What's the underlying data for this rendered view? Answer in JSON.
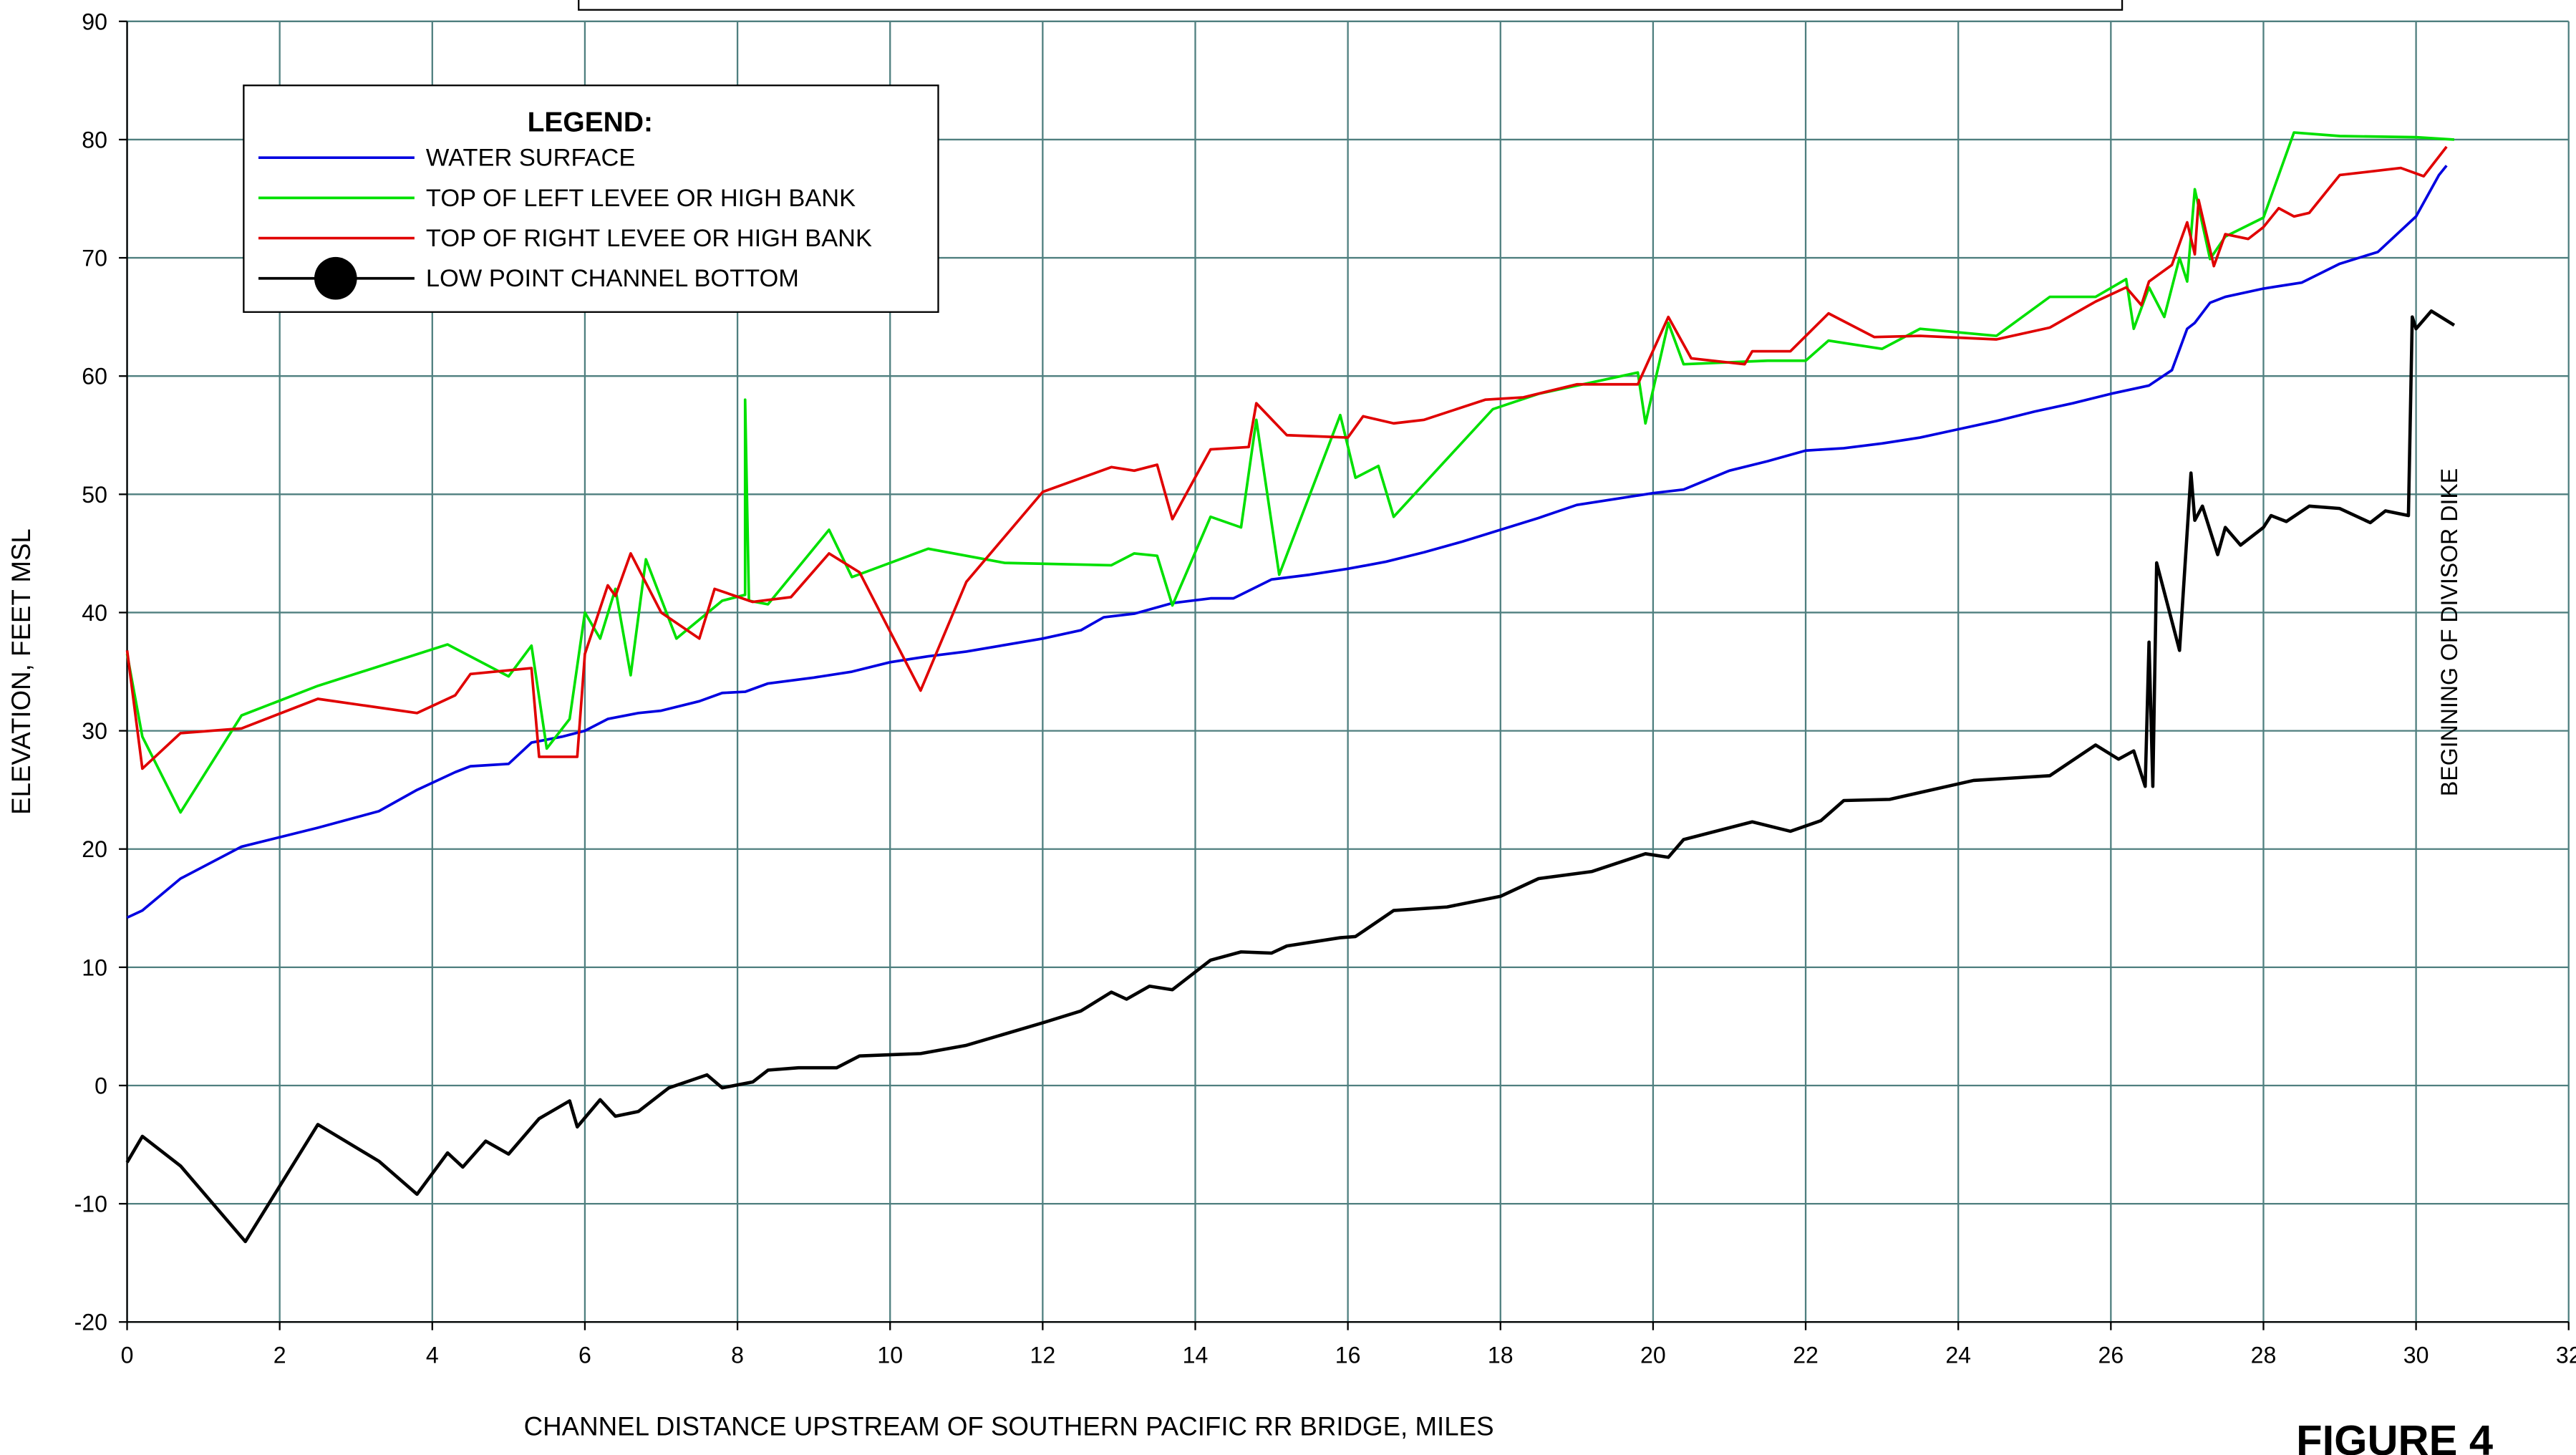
{
  "chart_data": {
    "type": "line",
    "x_label": "CHANNEL DISTANCE UPSTREAM OF SOUTHERN PACIFIC RR BRIDGE, MILES",
    "y_label": "ELEVATION, FEET MSL",
    "legend_title": "LEGEND:",
    "annotation": "BEGINNING OF DIVISOR DIKE",
    "figure_label": "FIGURE 4",
    "xlim": [
      0,
      32
    ],
    "xticks": [
      0,
      2,
      4,
      6,
      8,
      10,
      12,
      14,
      16,
      18,
      20,
      22,
      24,
      26,
      28,
      30,
      32
    ],
    "ylim": [
      -20,
      90
    ],
    "yticks": [
      -20,
      -10,
      0,
      10,
      20,
      30,
      40,
      50,
      60,
      70,
      80,
      90
    ],
    "grid": true,
    "legend": "upper left",
    "series": [
      {
        "name": "WATER SURFACE",
        "color": "#0000e0",
        "x": [
          0,
          0.2,
          0.7,
          1.5,
          2.5,
          3.3,
          3.8,
          4.3,
          4.5,
          5,
          5.3,
          5.7,
          6,
          6.3,
          6.7,
          7,
          7.5,
          7.8,
          8.1,
          8.4,
          9,
          9.5,
          10,
          10.5,
          11,
          12,
          12.5,
          12.8,
          13.2,
          13.7,
          14.2,
          14.5,
          15,
          15.5,
          16,
          16.5,
          17,
          17.5,
          18,
          18.5,
          19,
          19.5,
          20,
          20.4,
          21,
          21.5,
          22,
          22.5,
          23,
          23.5,
          24,
          24.5,
          25,
          25.5,
          26,
          26.5,
          26.8,
          27,
          27.1,
          27.3,
          27.5,
          28,
          28.5,
          29,
          29.5,
          30,
          30.3,
          30.4
        ],
        "values": [
          14.2,
          14.8,
          17.5,
          20.2,
          21.8,
          23.2,
          25,
          26.5,
          27,
          27.2,
          29,
          29.5,
          30,
          31,
          31.5,
          31.7,
          32.5,
          33.2,
          33.3,
          34,
          34.5,
          35,
          35.8,
          36.3,
          36.7,
          37.8,
          38.5,
          39.6,
          39.9,
          40.8,
          41.2,
          41.2,
          42.8,
          43.2,
          43.7,
          44.3,
          45.1,
          46,
          47,
          48,
          49.1,
          49.6,
          50.1,
          50.4,
          52,
          52.8,
          53.7,
          53.9,
          54.3,
          54.8,
          55.5,
          56.2,
          57,
          57.7,
          58.5,
          59.2,
          60.5,
          64,
          64.5,
          66.2,
          66.7,
          67.4,
          67.9,
          69.5,
          70.5,
          73.5,
          77,
          77.8
        ]
      },
      {
        "name": "TOP OF LEFT LEVEE OR HIGH BANK",
        "color": "#00e000",
        "x": [
          0,
          0.2,
          0.7,
          1.5,
          2.5,
          4.2,
          5,
          5.3,
          5.5,
          5.8,
          6,
          6.2,
          6.4,
          6.6,
          6.8,
          7.2,
          7.8,
          8.1,
          8.1,
          8.15,
          8.4,
          9.2,
          9.5,
          10.5,
          11.5,
          12.9,
          13.2,
          13.5,
          13.7,
          14.2,
          14.6,
          14.8,
          15.1,
          15.9,
          16.1,
          16.4,
          16.6,
          17.9,
          18.5,
          19.8,
          19.9,
          20.2,
          20.4,
          21.5,
          22,
          22.3,
          23,
          23.5,
          24.5,
          25.2,
          25.8,
          26.2,
          26.3,
          26.5,
          26.7,
          26.9,
          27,
          27.1,
          27.3,
          27.5,
          28,
          28.4,
          29,
          30,
          30.5
        ],
        "values": [
          36.5,
          29.5,
          23.1,
          31.3,
          33.8,
          37.3,
          34.6,
          37.2,
          28.5,
          31,
          40,
          37.8,
          42,
          34.7,
          44.5,
          37.8,
          41,
          41.5,
          58,
          41,
          40.7,
          47,
          43,
          45.4,
          44.2,
          44,
          45,
          44.8,
          40.6,
          48.1,
          47.2,
          56.3,
          43.2,
          56.7,
          51.4,
          52.4,
          48.1,
          57.2,
          58.5,
          60.3,
          56,
          64.5,
          61,
          61.3,
          61.3,
          63,
          62.3,
          64,
          63.4,
          66.7,
          66.7,
          68.2,
          64,
          67.5,
          65,
          70,
          68,
          75.8,
          69.9,
          71.8,
          73.4,
          80.6,
          80.3,
          80.2,
          80
        ]
      },
      {
        "name": "TOP OF RIGHT LEVEE OR HIGH BANK",
        "color": "#e00000",
        "x": [
          0,
          0.2,
          0.7,
          1.5,
          2.5,
          3.8,
          4.3,
          4.5,
          5.3,
          5.4,
          5.9,
          6,
          6.3,
          6.4,
          6.6,
          7,
          7.5,
          7.7,
          8.2,
          8.7,
          9.2,
          9.6,
          10.4,
          11,
          12,
          12.9,
          13.2,
          13.5,
          13.7,
          14.2,
          14.7,
          14.8,
          15.2,
          16,
          16.2,
          16.6,
          17,
          17.8,
          18.3,
          19,
          19.8,
          20.2,
          20.5,
          21.2,
          21.3,
          21.8,
          22.3,
          22.9,
          23.5,
          24.5,
          25.2,
          25.8,
          26.2,
          26.4,
          26.5,
          26.8,
          27,
          27.1,
          27.15,
          27.35,
          27.5,
          27.8,
          28,
          28.2,
          28.4,
          28.6,
          29,
          29.8,
          30.1,
          30.4
        ],
        "values": [
          36.8,
          26.8,
          29.8,
          30.2,
          32.7,
          31.5,
          33,
          34.8,
          35.3,
          27.8,
          27.8,
          36.5,
          42.3,
          41.4,
          45,
          40,
          37.8,
          42,
          40.9,
          41.3,
          45,
          43.4,
          33.4,
          42.6,
          50.2,
          52.3,
          52,
          52.5,
          47.9,
          53.8,
          54,
          57.7,
          55,
          54.8,
          56.6,
          56,
          56.3,
          58,
          58.2,
          59.3,
          59.3,
          65,
          61.5,
          61,
          62.1,
          62.1,
          65.3,
          63.3,
          63.4,
          63.1,
          64.1,
          66.3,
          67.5,
          66,
          68,
          69.4,
          73,
          70.3,
          74.9,
          69.3,
          72,
          71.6,
          72.6,
          74.2,
          73.5,
          73.8,
          77,
          77.6,
          76.9,
          79.4
        ]
      },
      {
        "name": "LOW POINT CHANNEL BOTTOM",
        "color": "#000000",
        "x": [
          0,
          0.2,
          0.7,
          1.55,
          2.5,
          3.3,
          3.8,
          4.2,
          4.4,
          4.7,
          5,
          5.4,
          5.8,
          5.9,
          6.2,
          6.4,
          6.7,
          7.1,
          7.6,
          7.8,
          8.2,
          8.4,
          8.8,
          9.3,
          9.6,
          10.4,
          11,
          12,
          12.5,
          12.9,
          13.1,
          13.4,
          13.7,
          14.2,
          14.6,
          15,
          15.2,
          15.9,
          16.1,
          16.6,
          17.3,
          18,
          18.5,
          19.2,
          19.9,
          20.2,
          20.4,
          21.3,
          21.8,
          22.2,
          22.5,
          23.1,
          24.2,
          25.2,
          25.8,
          26.1,
          26.3,
          26.45,
          26.5,
          26.55,
          26.6,
          26.9,
          27.05,
          27.1,
          27.2,
          27.4,
          27.5,
          27.7,
          28,
          28.1,
          28.3,
          28.6,
          29,
          29.4,
          29.6,
          29.9,
          29.95,
          30,
          30.2,
          30.5
        ],
        "values": [
          -6.5,
          -4.3,
          -6.8,
          -13.2,
          -3.3,
          -6.4,
          -9.2,
          -5.7,
          -6.9,
          -4.7,
          -5.8,
          -2.8,
          -1.3,
          -3.5,
          -1.2,
          -2.6,
          -2.2,
          -0.2,
          0.9,
          -0.2,
          0.3,
          1.3,
          1.5,
          1.5,
          2.5,
          2.7,
          3.4,
          5.3,
          6.3,
          7.9,
          7.3,
          8.4,
          8.1,
          10.6,
          11.3,
          11.2,
          11.8,
          12.5,
          12.6,
          14.8,
          15.1,
          16,
          17.5,
          18.1,
          19.6,
          19.3,
          20.8,
          22.3,
          21.5,
          22.4,
          24.1,
          24.2,
          25.8,
          26.2,
          28.8,
          27.6,
          28.3,
          25.3,
          37.5,
          25.3,
          44.2,
          36.8,
          51.8,
          47.8,
          49,
          44.9,
          47.2,
          45.7,
          47.2,
          48.2,
          47.7,
          49,
          48.8,
          47.6,
          48.6,
          48.2,
          65,
          64,
          65.5,
          64.3
        ]
      }
    ]
  }
}
